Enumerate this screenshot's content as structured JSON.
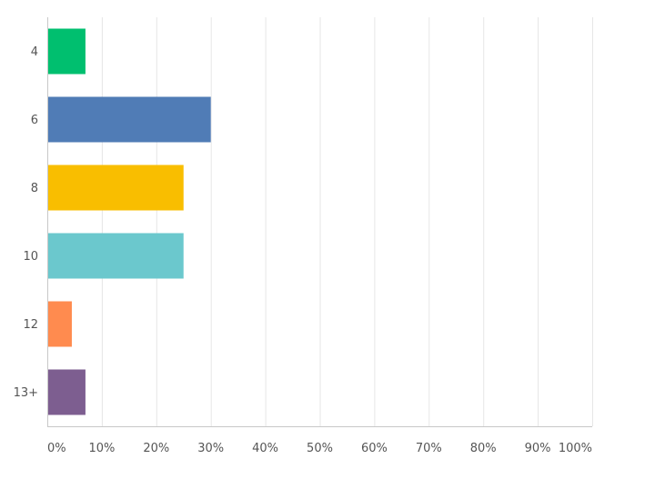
{
  "chart_data": {
    "type": "bar",
    "orientation": "horizontal",
    "title": "",
    "xlabel": "",
    "ylabel": "",
    "categories": [
      "4",
      "6",
      "8",
      "10",
      "12",
      "13+"
    ],
    "values": [
      7,
      30,
      25,
      25,
      4.5,
      7
    ],
    "colors": [
      "#00bf6f",
      "#507cb6",
      "#f9be00",
      "#6bc8cd",
      "#ff8b4f",
      "#7d5e90"
    ],
    "xlim": [
      0,
      100
    ],
    "x_ticks": [
      0,
      10,
      20,
      30,
      40,
      50,
      60,
      70,
      80,
      90,
      100
    ],
    "x_tick_labels": [
      "0%",
      "10%",
      "20%",
      "30%",
      "40%",
      "50%",
      "60%",
      "70%",
      "80%",
      "90%",
      "100%"
    ],
    "grid": true,
    "legend": "none"
  }
}
